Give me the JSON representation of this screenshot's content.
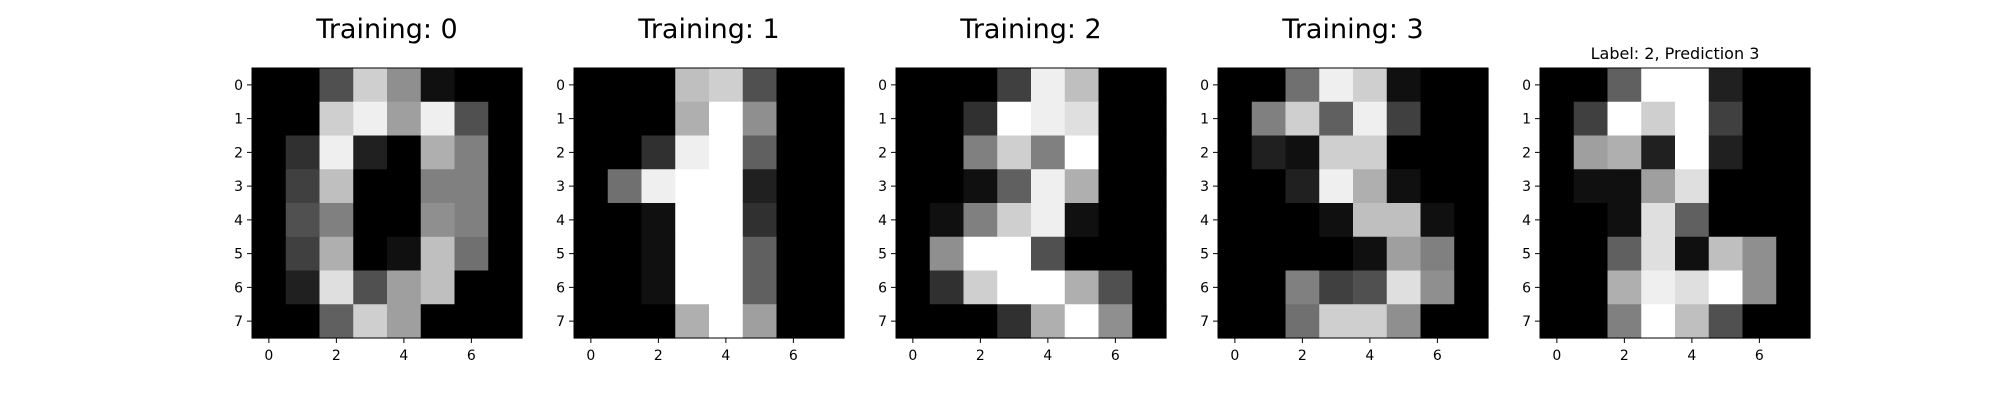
{
  "chart_data": [
    {
      "type": "heatmap",
      "title": "Training: 0",
      "colormap": "gray",
      "value_range": [
        0,
        16
      ],
      "x_ticks": [
        0,
        2,
        4,
        6
      ],
      "y_ticks": [
        0,
        1,
        2,
        3,
        4,
        5,
        6,
        7
      ],
      "values": [
        [
          0,
          0,
          5,
          13,
          9,
          1,
          0,
          0
        ],
        [
          0,
          0,
          13,
          15,
          10,
          15,
          5,
          0
        ],
        [
          0,
          3,
          15,
          2,
          0,
          11,
          8,
          0
        ],
        [
          0,
          4,
          12,
          0,
          0,
          8,
          8,
          0
        ],
        [
          0,
          5,
          8,
          0,
          0,
          9,
          8,
          0
        ],
        [
          0,
          4,
          11,
          0,
          1,
          12,
          7,
          0
        ],
        [
          0,
          2,
          14,
          5,
          10,
          12,
          0,
          0
        ],
        [
          0,
          0,
          6,
          13,
          10,
          0,
          0,
          0
        ]
      ]
    },
    {
      "type": "heatmap",
      "title": "Training: 1",
      "colormap": "gray",
      "value_range": [
        0,
        16
      ],
      "x_ticks": [
        0,
        2,
        4,
        6
      ],
      "y_ticks": [
        0,
        1,
        2,
        3,
        4,
        5,
        6,
        7
      ],
      "values": [
        [
          0,
          0,
          0,
          12,
          13,
          5,
          0,
          0
        ],
        [
          0,
          0,
          0,
          11,
          16,
          9,
          0,
          0
        ],
        [
          0,
          0,
          3,
          15,
          16,
          6,
          0,
          0
        ],
        [
          0,
          7,
          15,
          16,
          16,
          2,
          0,
          0
        ],
        [
          0,
          0,
          1,
          16,
          16,
          3,
          0,
          0
        ],
        [
          0,
          0,
          1,
          16,
          16,
          6,
          0,
          0
        ],
        [
          0,
          0,
          1,
          16,
          16,
          6,
          0,
          0
        ],
        [
          0,
          0,
          0,
          11,
          16,
          10,
          0,
          0
        ]
      ]
    },
    {
      "type": "heatmap",
      "title": "Training: 2",
      "colormap": "gray",
      "value_range": [
        0,
        16
      ],
      "x_ticks": [
        0,
        2,
        4,
        6
      ],
      "y_ticks": [
        0,
        1,
        2,
        3,
        4,
        5,
        6,
        7
      ],
      "values": [
        [
          0,
          0,
          0,
          4,
          15,
          12,
          0,
          0
        ],
        [
          0,
          0,
          3,
          16,
          15,
          14,
          0,
          0
        ],
        [
          0,
          0,
          8,
          13,
          8,
          16,
          0,
          0
        ],
        [
          0,
          0,
          1,
          6,
          15,
          11,
          0,
          0
        ],
        [
          0,
          1,
          8,
          13,
          15,
          1,
          0,
          0
        ],
        [
          0,
          9,
          16,
          16,
          5,
          0,
          0,
          0
        ],
        [
          0,
          3,
          13,
          16,
          16,
          11,
          5,
          0
        ],
        [
          0,
          0,
          0,
          3,
          11,
          16,
          9,
          0
        ]
      ]
    },
    {
      "type": "heatmap",
      "title": "Training: 3",
      "colormap": "gray",
      "value_range": [
        0,
        16
      ],
      "x_ticks": [
        0,
        2,
        4,
        6
      ],
      "y_ticks": [
        0,
        1,
        2,
        3,
        4,
        5,
        6,
        7
      ],
      "values": [
        [
          0,
          0,
          7,
          15,
          13,
          1,
          0,
          0
        ],
        [
          0,
          8,
          13,
          6,
          15,
          4,
          0,
          0
        ],
        [
          0,
          2,
          1,
          13,
          13,
          0,
          0,
          0
        ],
        [
          0,
          0,
          2,
          15,
          11,
          1,
          0,
          0
        ],
        [
          0,
          0,
          0,
          1,
          12,
          12,
          1,
          0
        ],
        [
          0,
          0,
          0,
          0,
          1,
          10,
          8,
          0
        ],
        [
          0,
          0,
          8,
          4,
          5,
          14,
          9,
          0
        ],
        [
          0,
          0,
          7,
          13,
          13,
          9,
          0,
          0
        ]
      ]
    },
    {
      "type": "heatmap",
      "title": "Label: 2, Prediction 3",
      "colormap": "gray",
      "value_range": [
        0,
        16
      ],
      "x_ticks": [
        0,
        2,
        4,
        6
      ],
      "y_ticks": [
        0,
        1,
        2,
        3,
        4,
        5,
        6,
        7
      ],
      "values": [
        [
          0,
          0,
          6,
          16,
          16,
          2,
          0,
          0
        ],
        [
          0,
          4,
          16,
          13,
          16,
          4,
          0,
          0
        ],
        [
          0,
          10,
          11,
          2,
          16,
          2,
          0,
          0
        ],
        [
          0,
          1,
          1,
          10,
          14,
          0,
          0,
          0
        ],
        [
          0,
          0,
          1,
          14,
          6,
          0,
          0,
          0
        ],
        [
          0,
          0,
          6,
          14,
          1,
          12,
          9,
          0
        ],
        [
          0,
          0,
          11,
          15,
          14,
          16,
          9,
          0
        ],
        [
          0,
          0,
          8,
          16,
          12,
          5,
          0,
          0
        ]
      ]
    }
  ]
}
